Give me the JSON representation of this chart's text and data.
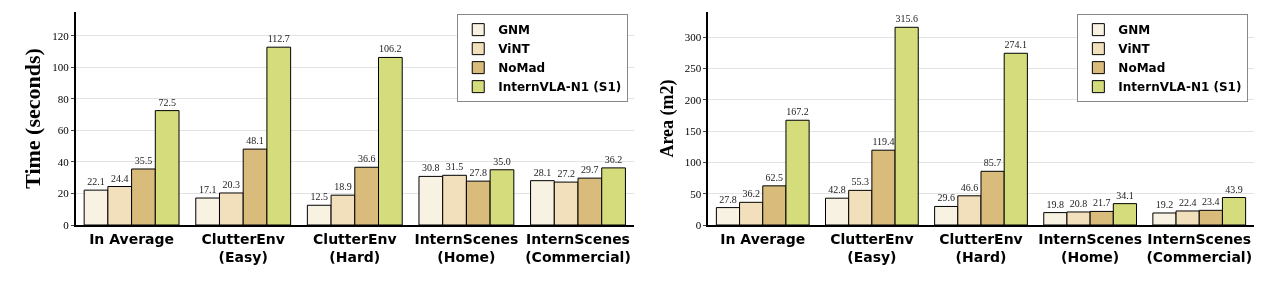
{
  "chart_data": [
    {
      "type": "bar",
      "ylabel": "Time (seconds)",
      "categories": [
        "In Average",
        "ClutterEnv\n(Easy)",
        "ClutterEnv\n(Hard)",
        "InternScenes\n(Home)",
        "InternScenes\n(Commercial)"
      ],
      "series": [
        {
          "name": "GNM",
          "color": "#f7f2e1",
          "values": [
            22.1,
            17.1,
            12.5,
            30.8,
            28.1
          ]
        },
        {
          "name": "ViNT",
          "color": "#f2dfbb",
          "values": [
            24.4,
            20.3,
            18.9,
            31.5,
            27.2
          ]
        },
        {
          "name": "NoMad",
          "color": "#d9bc7b",
          "values": [
            35.5,
            48.1,
            36.6,
            27.8,
            29.7
          ]
        },
        {
          "name": "InternVLA-N1 (S1)",
          "color": "#d4dc7c",
          "values": [
            72.5,
            112.7,
            106.2,
            35.0,
            36.2
          ],
          "value_labels": [
            "72.5",
            "112.7",
            "106.2",
            "35.0",
            "36.2"
          ]
        }
      ],
      "ylim": [
        0,
        135
      ],
      "yticks": [
        0,
        20,
        40,
        60,
        80,
        100,
        120
      ],
      "grid": "y",
      "legend": "top right",
      "data_labels": true
    },
    {
      "type": "bar",
      "ylabel": "Area (m2)",
      "categories": [
        "In Average",
        "ClutterEnv\n(Easy)",
        "ClutterEnv\n(Hard)",
        "InternScenes\n(Home)",
        "InternScenes\n(Commercial)"
      ],
      "series": [
        {
          "name": "GNM",
          "color": "#f7f2e1",
          "values": [
            27.8,
            42.8,
            29.6,
            19.8,
            19.2
          ]
        },
        {
          "name": "ViNT",
          "color": "#f2dfbb",
          "values": [
            36.2,
            55.3,
            46.6,
            20.8,
            22.4
          ]
        },
        {
          "name": "NoMad",
          "color": "#d9bc7b",
          "values": [
            62.5,
            119.4,
            85.7,
            21.7,
            23.4
          ]
        },
        {
          "name": "InternVLA-N1 (S1)",
          "color": "#d4dc7c",
          "values": [
            167.2,
            315.6,
            274.1,
            34.1,
            43.9
          ]
        }
      ],
      "ylim": [
        0,
        340
      ],
      "yticks": [
        0,
        50,
        100,
        150,
        200,
        250,
        300
      ],
      "grid": "y",
      "legend": "top right",
      "data_labels": true
    }
  ]
}
